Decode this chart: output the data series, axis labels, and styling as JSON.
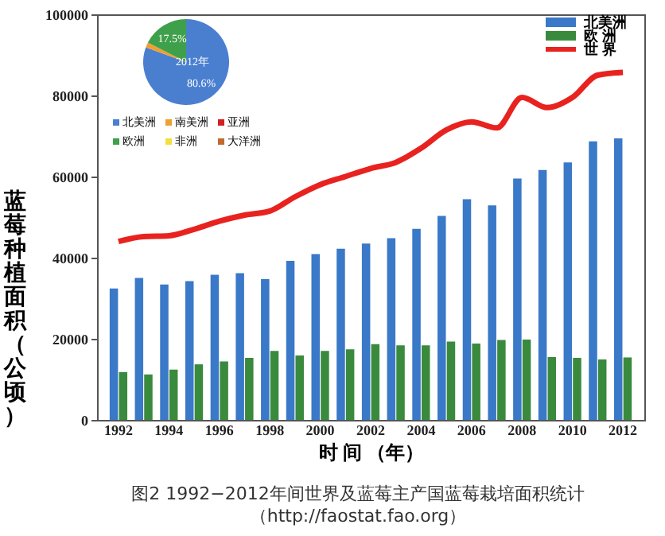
{
  "chart_data": [
    {
      "type": "bar",
      "xlabel": "时 间 （年）",
      "ylabel": "蓝莓种植面积（公顷）",
      "categories": [
        "1992",
        null,
        "1994",
        null,
        "1996",
        null,
        "1998",
        null,
        "2000",
        null,
        "2002",
        null,
        "2004",
        null,
        "2006",
        null,
        "2008",
        null,
        "2010",
        null,
        "2012"
      ],
      "series": [
        {
          "name": "北美洲",
          "color": "#3a78c8",
          "type": "bar",
          "values": [
            32400,
            35000,
            33400,
            34200,
            35800,
            36200,
            34700,
            39200,
            40900,
            42200,
            43500,
            44800,
            47100,
            50300,
            54400,
            52900,
            59500,
            61600,
            63500,
            68700,
            69400
          ]
        },
        {
          "name": "欧 洲",
          "color": "#3a8a3e",
          "type": "bar",
          "values": [
            11800,
            11200,
            12400,
            13700,
            14400,
            15300,
            17000,
            15900,
            17000,
            17400,
            18700,
            18400,
            18400,
            19300,
            18800,
            19700,
            19800,
            15500,
            15300,
            14900,
            15400
          ]
        },
        {
          "name": "世 界",
          "color": "#e8231f",
          "type": "line",
          "values": [
            44000,
            45200,
            45400,
            47000,
            49000,
            50500,
            51500,
            55000,
            58000,
            60000,
            62000,
            63500,
            67000,
            71500,
            73500,
            72000,
            79500,
            77000,
            79500,
            85000,
            85700
          ]
        }
      ],
      "ylim": [
        0,
        100000
      ],
      "yticks": [
        0,
        20000,
        40000,
        60000,
        80000,
        100000
      ],
      "legend": "top right",
      "annotations": [
        "图2 1992−2012年间世界及蓝莓主产国蓝莓栽培面积统计",
        "（http://faostat.fao.org）"
      ]
    },
    {
      "type": "pie",
      "title": "2012年",
      "categories": [
        "北美洲",
        "南美洲",
        "亚洲",
        "欧洲",
        "非洲",
        "大洋洲"
      ],
      "values": [
        80.6,
        1.9,
        null,
        17.5,
        null,
        null
      ],
      "colors": [
        "#4a7fd0",
        "#f0a030",
        "#d02020",
        "#3ea04a",
        "#f0e040",
        "#c06a30"
      ],
      "value_labels": [
        "80.6%",
        null,
        null,
        "17.5%",
        null,
        null
      ],
      "legend": "bottom"
    }
  ]
}
